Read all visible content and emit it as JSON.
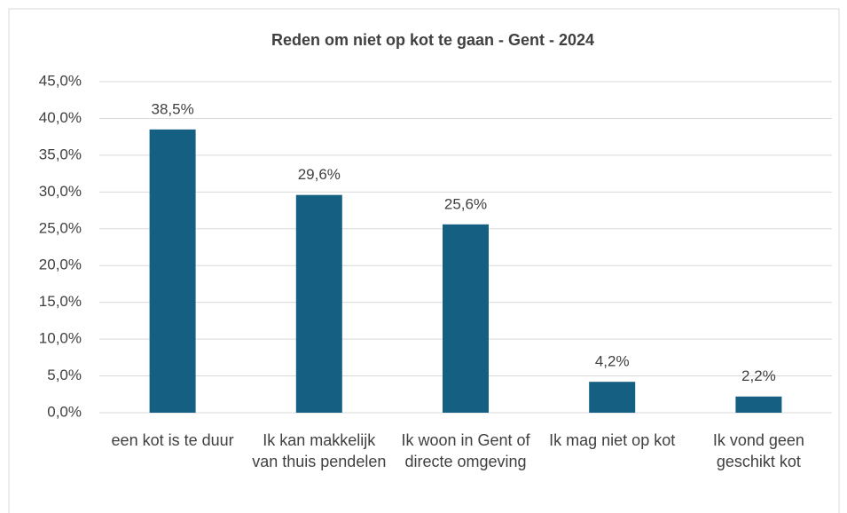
{
  "chart_data": {
    "type": "bar",
    "title": "Reden om niet op kot te gaan - Gent - 2024",
    "categories": [
      "een kot is te duur",
      "Ik kan makkelijk van thuis pendelen",
      "Ik woon in Gent of directe omgeving",
      "Ik mag niet op kot",
      "Ik vond geen geschikt kot"
    ],
    "values": [
      38.5,
      29.6,
      25.6,
      4.2,
      2.2
    ],
    "value_labels": [
      "38,5%",
      "29,6%",
      "25,6%",
      "4,2%",
      "2,2%"
    ],
    "color": "#156082",
    "ylim": [
      0,
      45
    ],
    "yticks": [
      {
        "value": 0,
        "label": "0,0%"
      },
      {
        "value": 5,
        "label": "5,0%"
      },
      {
        "value": 10,
        "label": "10,0%"
      },
      {
        "value": 15,
        "label": "15,0%"
      },
      {
        "value": 20,
        "label": "20,0%"
      },
      {
        "value": 25,
        "label": "25,0%"
      },
      {
        "value": 30,
        "label": "30,0%"
      },
      {
        "value": 35,
        "label": "35,0%"
      },
      {
        "value": 40,
        "label": "40,0%"
      },
      {
        "value": 45,
        "label": "45,0%"
      }
    ],
    "grid": true
  }
}
